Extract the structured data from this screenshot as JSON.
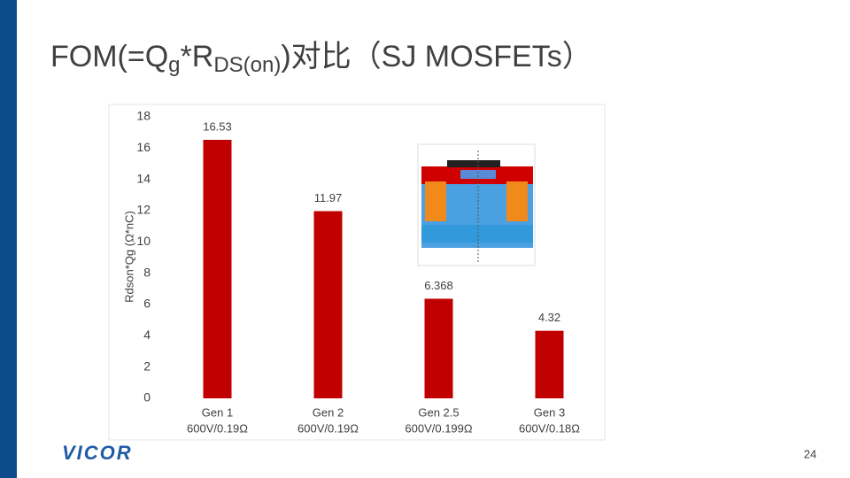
{
  "slide": {
    "title_parts": [
      {
        "text": "FOM(=Q"
      },
      {
        "text": "g",
        "sub": true
      },
      {
        "text": "*R"
      },
      {
        "text": "DS(on)",
        "sub": true
      },
      {
        "text": ")对比（SJ MOSFETs）"
      }
    ]
  },
  "chart_data": {
    "type": "bar",
    "y_label": "Rdson*Qg (Ω*nC)",
    "categories": [
      "Gen 1",
      "Gen 2",
      "Gen 2.5",
      "Gen 3"
    ],
    "category_ratings": [
      "600V/0.19Ω",
      "600V/0.19Ω",
      "600V/0.199Ω",
      "600V/0.18Ω"
    ],
    "values": [
      16.53,
      11.97,
      6.368,
      4.32
    ],
    "color": "#c00000",
    "ylim": [
      0,
      18
    ],
    "yticks": [
      0,
      2,
      4,
      6,
      8,
      10,
      12,
      14,
      16,
      18
    ],
    "grid": false,
    "show_value_labels": true
  },
  "footer": {
    "logo": "VICOR",
    "page_number": "24"
  }
}
